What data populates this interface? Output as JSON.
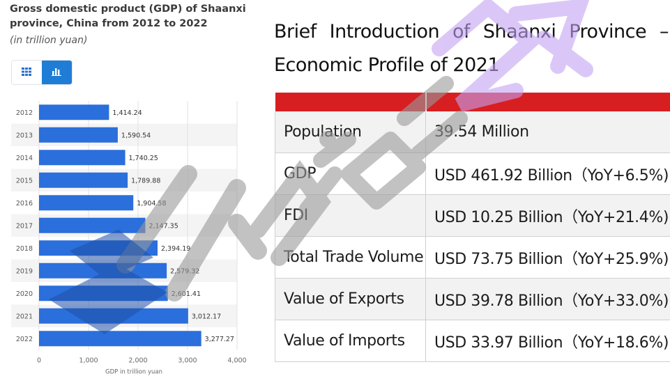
{
  "chart_data": {
    "type": "bar",
    "orientation": "horizontal",
    "title": "Gross domestic product (GDP) of Shaanxi province, China from 2012 to 2022",
    "subtitle": "(in trillion yuan)",
    "xlabel": "GDP in trillion yuan",
    "ylabel": "",
    "categories": [
      "2012",
      "2013",
      "2014",
      "2015",
      "2016",
      "2017",
      "2018",
      "2019",
      "2020",
      "2021",
      "2022"
    ],
    "values": [
      1414.24,
      1590.54,
      1740.25,
      1789.88,
      1904.58,
      2147.35,
      2394.19,
      2579.32,
      2601.41,
      3012.17,
      3277.27
    ],
    "value_labels": [
      "1,414.24",
      "1,590.54",
      "1,740.25",
      "1,789.88",
      "1,904.58",
      "2,147.35",
      "2,394.19",
      "2,579.32",
      "2,601.41",
      "3,012.17",
      "3,277.27"
    ],
    "xlim": [
      0,
      4000
    ],
    "xticks": [
      0,
      1000,
      2000,
      3000,
      4000
    ],
    "xtick_labels": [
      "0",
      "1,000",
      "2,000",
      "3,000",
      "4,000"
    ],
    "grid": true,
    "legend": "none",
    "bar_color": "#2a6fdb"
  },
  "view_toggle": {
    "table_icon": "grid-icon",
    "chart_icon": "bar-chart-icon",
    "active": "chart"
  },
  "profile": {
    "title_line1": "Brief Introduction of Shaanxi Province –",
    "title_line2": "Economic Profile of 2021",
    "header_color": "#d71f22",
    "rows": [
      {
        "label": "Population",
        "value": "39.54 Million"
      },
      {
        "label": "GDP",
        "value": "USD 461.92 Billion（YoY+6.5%)"
      },
      {
        "label": "FDI",
        "value": "USD 10.25 Billion（YoY+21.4%)"
      },
      {
        "label": "Total Trade Volume",
        "value": "USD 73.75 Billion（YoY+25.9%)"
      },
      {
        "label": "Value of Exports",
        "value": "USD 39.78 Billion（YoY+33.0%)"
      },
      {
        "label": "Value of Imports",
        "value": "USD 33.97 Billion（YoY+18.6%)"
      }
    ]
  },
  "watermark": {
    "text": "Huijat24",
    "colors": [
      "#c4a2f2",
      "#9a9a9a",
      "#1e50a8"
    ]
  }
}
